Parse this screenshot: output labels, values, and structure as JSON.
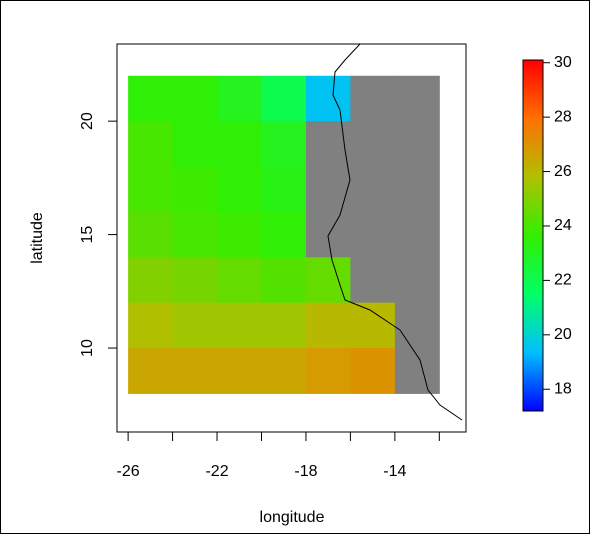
{
  "chart_data": {
    "type": "heatmap",
    "xlabel": "longitude",
    "ylabel": "latitude",
    "x": [
      -25,
      -23,
      -21,
      -19,
      -17,
      -15,
      -13
    ],
    "y": [
      21,
      19,
      17,
      15,
      13,
      11,
      9
    ],
    "values": [
      [
        23.5,
        23.5,
        23,
        22,
        19.5,
        null,
        null
      ],
      [
        24,
        23.5,
        23.5,
        23,
        null,
        null,
        null
      ],
      [
        24,
        23.8,
        23.5,
        23.2,
        null,
        null,
        null
      ],
      [
        24.3,
        24,
        23.8,
        23.5,
        null,
        null,
        null
      ],
      [
        25,
        24.8,
        24.5,
        24.2,
        24.5,
        null,
        null
      ],
      [
        25.8,
        25.5,
        25.5,
        25.5,
        26,
        26,
        null
      ],
      [
        26.5,
        26.5,
        26.5,
        26.5,
        26.8,
        27,
        null
      ]
    ],
    "na_color": "#808080",
    "xlim": [
      -26.5,
      -10.8
    ],
    "ylim": [
      6.3,
      23.4
    ],
    "xticks": [
      -26,
      -22,
      -18,
      -14
    ],
    "xminor_ticks": [
      -24,
      -20,
      -16,
      -12
    ],
    "yticks": [
      10,
      15,
      20
    ],
    "colorbar": {
      "lim": [
        17.2,
        30.1
      ],
      "ticks": [
        18,
        20,
        22,
        24,
        26,
        28,
        30
      ],
      "colors": [
        "#0000ff",
        "#00bfff",
        "#00ff66",
        "#33ee00",
        "#b0c000",
        "#ff7000",
        "#ff0000"
      ]
    }
  }
}
